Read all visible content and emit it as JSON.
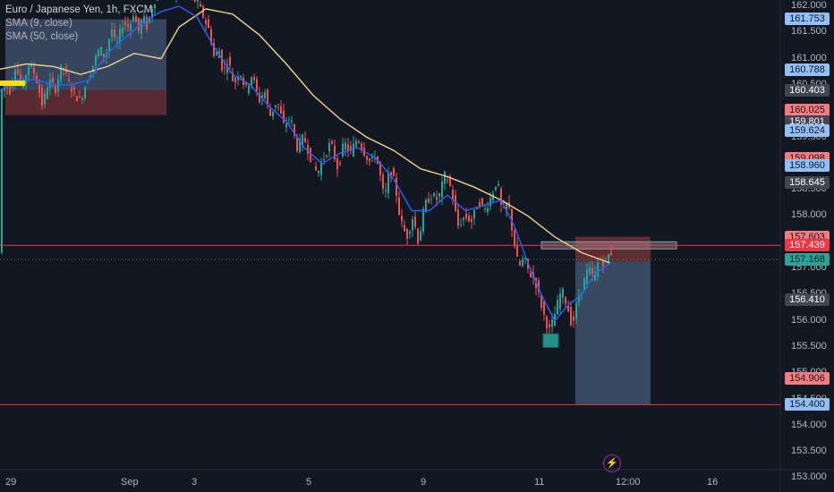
{
  "legend": {
    "title": "Euro / Japanese Yen, 1h, FXCM",
    "indicators": [
      "SMA (9, close)",
      "SMA (50, close)"
    ]
  },
  "colors": {
    "background": "#131722",
    "up": "#26a69a",
    "down": "#ef5350",
    "sma9": "#2962ff",
    "sma50": "#f0d48a",
    "hline": "#f23645",
    "current_price": "#26a69a"
  },
  "price_axis": {
    "ticks": [
      "162.000",
      "161.500",
      "161.000",
      "160.500",
      "160.000",
      "159.500",
      "159.000",
      "158.500",
      "158.000",
      "157.500",
      "157.000",
      "156.500",
      "156.000",
      "155.500",
      "155.000",
      "154.500",
      "154.000",
      "153.500",
      "153.000"
    ]
  },
  "time_axis": {
    "labels": [
      "29",
      "Sep",
      "3",
      "5",
      "9",
      "11",
      "12:00",
      "16"
    ]
  },
  "price_badges": [
    {
      "value": "161.753",
      "bg": "#90bff9",
      "fg": "#131722"
    },
    {
      "value": "160.788",
      "bg": "#90bff9",
      "fg": "#131722"
    },
    {
      "value": "160.403",
      "bg": "#434651",
      "fg": "#ffffff"
    },
    {
      "value": "160.025",
      "bg": "#f77c80",
      "fg": "#131722"
    },
    {
      "value": "159.801",
      "bg": "#434651",
      "fg": "#ffffff"
    },
    {
      "value": "159.624",
      "bg": "#90bff9",
      "fg": "#131722"
    },
    {
      "value": "159.098",
      "bg": "#f77c80",
      "fg": "#131722"
    },
    {
      "value": "158.960",
      "bg": "#90bff9",
      "fg": "#131722"
    },
    {
      "value": "158.645",
      "bg": "#434651",
      "fg": "#ffffff"
    },
    {
      "value": "157.603",
      "bg": "#f77c80",
      "fg": "#131722"
    },
    {
      "value": "157.439",
      "bg": "#f23645",
      "fg": "#ffffff"
    },
    {
      "value": "157.168",
      "bg": "#26a69a",
      "fg": "#131722"
    },
    {
      "value": "156.410",
      "bg": "#434651",
      "fg": "#ffffff"
    },
    {
      "value": "154.906",
      "bg": "#f77c80",
      "fg": "#131722"
    },
    {
      "value": "154.400",
      "bg": "#90bff9",
      "fg": "#131722"
    }
  ],
  "chart_data": {
    "type": "candlestick",
    "symbol": "EURJPY",
    "interval": "1h",
    "ylim": [
      152.9,
      162.1
    ],
    "horizontal_lines": [
      157.439,
      154.4
    ],
    "current_price": 157.168,
    "short_position": {
      "entry": 157.439,
      "stop": 157.603,
      "target": 154.4
    },
    "long_position_box": {
      "entry": 160.403,
      "target": 161.753,
      "stop": 160.025
    },
    "path": [
      [
        0,
        160.3
      ],
      [
        5,
        160.5
      ],
      [
        12,
        160.4
      ],
      [
        18,
        160.9
      ],
      [
        25,
        160.4
      ],
      [
        32,
        160.9
      ],
      [
        40,
        160.7
      ],
      [
        48,
        160.1
      ],
      [
        55,
        160.6
      ],
      [
        62,
        160.4
      ],
      [
        70,
        160.9
      ],
      [
        78,
        160.5
      ],
      [
        85,
        160.3
      ],
      [
        90,
        160.2
      ],
      [
        98,
        160.6
      ],
      [
        105,
        160.9
      ],
      [
        112,
        161.2
      ],
      [
        118,
        161.0
      ],
      [
        125,
        161.6
      ],
      [
        130,
        161.2
      ],
      [
        138,
        161.7
      ],
      [
        145,
        161.6
      ],
      [
        150,
        161.9
      ],
      [
        155,
        161.5
      ],
      [
        160,
        161.8
      ],
      [
        165,
        161.6
      ],
      [
        172,
        162.1
      ],
      [
        180,
        162.2
      ],
      [
        200,
        162.3
      ],
      [
        220,
        162.1
      ],
      [
        228,
        161.8
      ],
      [
        235,
        161.5
      ],
      [
        240,
        161.0
      ],
      [
        245,
        161.2
      ],
      [
        250,
        160.7
      ],
      [
        255,
        161.0
      ],
      [
        262,
        160.5
      ],
      [
        268,
        160.8
      ],
      [
        275,
        160.4
      ],
      [
        282,
        160.7
      ],
      [
        290,
        160.2
      ],
      [
        296,
        160.4
      ],
      [
        302,
        159.9
      ],
      [
        310,
        160.2
      ],
      [
        318,
        159.7
      ],
      [
        325,
        159.9
      ],
      [
        332,
        159.3
      ],
      [
        340,
        159.5
      ],
      [
        348,
        159.1
      ],
      [
        355,
        158.8
      ],
      [
        362,
        159.1
      ],
      [
        370,
        159.4
      ],
      [
        378,
        158.9
      ],
      [
        385,
        159.4
      ],
      [
        392,
        159.2
      ],
      [
        400,
        159.5
      ],
      [
        408,
        159.2
      ],
      [
        415,
        159.0
      ],
      [
        420,
        159.2
      ],
      [
        425,
        158.8
      ],
      [
        430,
        158.3
      ],
      [
        436,
        158.9
      ],
      [
        442,
        158.6
      ],
      [
        448,
        157.9
      ],
      [
        455,
        157.6
      ],
      [
        462,
        158.0
      ],
      [
        468,
        157.5
      ],
      [
        475,
        158.2
      ],
      [
        482,
        158.4
      ],
      [
        490,
        158.3
      ],
      [
        498,
        158.8
      ],
      [
        505,
        158.5
      ],
      [
        512,
        157.8
      ],
      [
        520,
        158.0
      ],
      [
        528,
        157.9
      ],
      [
        535,
        158.3
      ],
      [
        542,
        158.1
      ],
      [
        550,
        158.4
      ],
      [
        556,
        158.7
      ],
      [
        562,
        158.0
      ],
      [
        568,
        158.3
      ],
      [
        574,
        157.6
      ],
      [
        580,
        157.0
      ],
      [
        586,
        157.2
      ],
      [
        592,
        156.9
      ],
      [
        598,
        156.8
      ],
      [
        604,
        156.4
      ],
      [
        610,
        156.0
      ],
      [
        615,
        155.8
      ],
      [
        620,
        156.1
      ],
      [
        628,
        156.6
      ],
      [
        634,
        156.3
      ],
      [
        640,
        155.9
      ],
      [
        646,
        156.4
      ],
      [
        652,
        156.7
      ],
      [
        658,
        157.0
      ],
      [
        664,
        156.8
      ],
      [
        670,
        157.2
      ],
      [
        676,
        157.1
      ],
      [
        682,
        157.3
      ]
    ],
    "sma9": [
      [
        0,
        160.4
      ],
      [
        20,
        160.6
      ],
      [
        40,
        160.6
      ],
      [
        60,
        160.5
      ],
      [
        80,
        160.5
      ],
      [
        100,
        160.6
      ],
      [
        120,
        161.1
      ],
      [
        140,
        161.4
      ],
      [
        160,
        161.7
      ],
      [
        180,
        161.9
      ],
      [
        200,
        162.0
      ],
      [
        220,
        161.8
      ],
      [
        240,
        161.2
      ],
      [
        260,
        160.7
      ],
      [
        280,
        160.5
      ],
      [
        300,
        160.1
      ],
      [
        320,
        159.8
      ],
      [
        340,
        159.3
      ],
      [
        360,
        159.0
      ],
      [
        380,
        159.2
      ],
      [
        400,
        159.3
      ],
      [
        420,
        159.1
      ],
      [
        440,
        158.7
      ],
      [
        460,
        158.1
      ],
      [
        480,
        158.1
      ],
      [
        500,
        158.4
      ],
      [
        520,
        158.1
      ],
      [
        540,
        158.2
      ],
      [
        560,
        158.3
      ],
      [
        575,
        157.8
      ],
      [
        590,
        157.1
      ],
      [
        605,
        156.5
      ],
      [
        620,
        156.0
      ],
      [
        635,
        156.3
      ],
      [
        650,
        156.5
      ],
      [
        665,
        156.9
      ],
      [
        682,
        157.1
      ]
    ],
    "sma50": [
      [
        0,
        160.8
      ],
      [
        30,
        160.9
      ],
      [
        60,
        160.85
      ],
      [
        90,
        160.7
      ],
      [
        120,
        160.85
      ],
      [
        150,
        161.1
      ],
      [
        180,
        161.0
      ],
      [
        200,
        161.6
      ],
      [
        230,
        161.95
      ],
      [
        260,
        161.85
      ],
      [
        290,
        161.45
      ],
      [
        320,
        160.9
      ],
      [
        350,
        160.3
      ],
      [
        380,
        159.85
      ],
      [
        410,
        159.5
      ],
      [
        440,
        159.25
      ],
      [
        470,
        158.9
      ],
      [
        500,
        158.75
      ],
      [
        530,
        158.55
      ],
      [
        560,
        158.3
      ],
      [
        590,
        158.0
      ],
      [
        620,
        157.6
      ],
      [
        650,
        157.3
      ],
      [
        682,
        157.1
      ]
    ]
  }
}
